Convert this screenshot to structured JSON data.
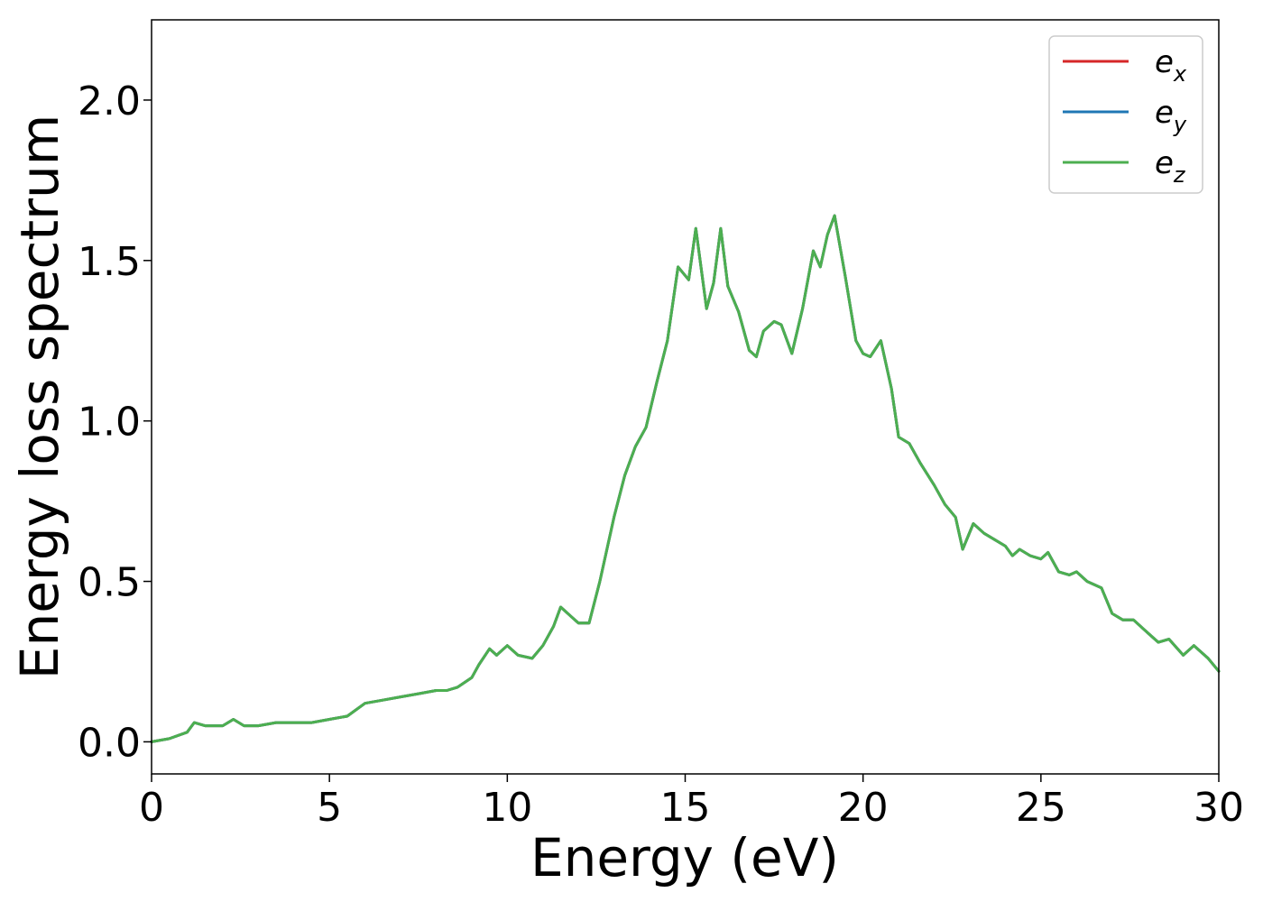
{
  "chart_data": {
    "type": "line",
    "title": "",
    "xlabel": "Energy (eV)",
    "ylabel": "Energy loss spectrum",
    "xlim": [
      0,
      30
    ],
    "ylim": [
      -0.1,
      2.25
    ],
    "xticks": [
      0,
      5,
      10,
      15,
      20,
      25,
      30
    ],
    "xtick_labels": [
      "0",
      "5",
      "10",
      "15",
      "20",
      "25",
      "30"
    ],
    "yticks": [
      0.0,
      0.5,
      1.0,
      1.5,
      2.0
    ],
    "ytick_labels": [
      "0.0",
      "0.5",
      "1.0",
      "1.5",
      "2.0"
    ],
    "grid": false,
    "legend_position": "top-right",
    "series": [
      {
        "name": "e_x",
        "label_main": "e",
        "label_sub": "x",
        "color": "#d62728"
      },
      {
        "name": "e_y",
        "label_main": "e",
        "label_sub": "y",
        "color": "#1f77b4"
      },
      {
        "name": "e_z",
        "label_main": "e",
        "label_sub": "z",
        "color": "#4caf50"
      }
    ],
    "x": [
      0,
      0.5,
      1.0,
      1.2,
      1.5,
      1.8,
      2.0,
      2.3,
      2.6,
      3.0,
      3.5,
      4.0,
      4.5,
      5.0,
      5.5,
      6.0,
      6.5,
      7.0,
      7.5,
      8.0,
      8.3,
      8.6,
      9.0,
      9.2,
      9.5,
      9.7,
      10.0,
      10.3,
      10.7,
      11.0,
      11.3,
      11.5,
      11.8,
      12.0,
      12.3,
      12.6,
      13.0,
      13.3,
      13.6,
      13.9,
      14.2,
      14.5,
      14.8,
      15.1,
      15.3,
      15.6,
      15.8,
      16.0,
      16.2,
      16.5,
      16.8,
      17.0,
      17.2,
      17.5,
      17.7,
      18.0,
      18.3,
      18.6,
      18.8,
      19.0,
      19.2,
      19.5,
      19.8,
      20.0,
      20.2,
      20.5,
      20.8,
      21.0,
      21.3,
      21.6,
      22.0,
      22.3,
      22.6,
      22.8,
      23.1,
      23.4,
      23.7,
      24.0,
      24.2,
      24.4,
      24.7,
      25.0,
      25.2,
      25.5,
      25.8,
      26.0,
      26.3,
      26.7,
      27.0,
      27.3,
      27.6,
      28.0,
      28.3,
      28.6,
      29.0,
      29.3,
      29.7,
      30.0
    ],
    "y": [
      0.0,
      0.01,
      0.03,
      0.06,
      0.05,
      0.05,
      0.05,
      0.07,
      0.05,
      0.05,
      0.06,
      0.06,
      0.06,
      0.07,
      0.08,
      0.12,
      0.13,
      0.14,
      0.15,
      0.16,
      0.16,
      0.17,
      0.2,
      0.24,
      0.29,
      0.27,
      0.3,
      0.27,
      0.26,
      0.3,
      0.36,
      0.42,
      0.39,
      0.37,
      0.37,
      0.5,
      0.7,
      0.83,
      0.92,
      0.98,
      1.12,
      1.25,
      1.48,
      1.44,
      1.6,
      1.35,
      1.43,
      1.6,
      1.42,
      1.34,
      1.22,
      1.2,
      1.28,
      1.31,
      1.3,
      1.21,
      1.35,
      1.53,
      1.48,
      1.58,
      1.64,
      1.45,
      1.25,
      1.21,
      1.2,
      1.25,
      1.1,
      0.95,
      0.93,
      0.87,
      0.8,
      0.74,
      0.7,
      0.6,
      0.68,
      0.65,
      0.63,
      0.61,
      0.58,
      0.6,
      0.58,
      0.57,
      0.59,
      0.53,
      0.52,
      0.53,
      0.5,
      0.48,
      0.4,
      0.38,
      0.38,
      0.34,
      0.31,
      0.32,
      0.27,
      0.3,
      0.26,
      0.22
    ]
  }
}
